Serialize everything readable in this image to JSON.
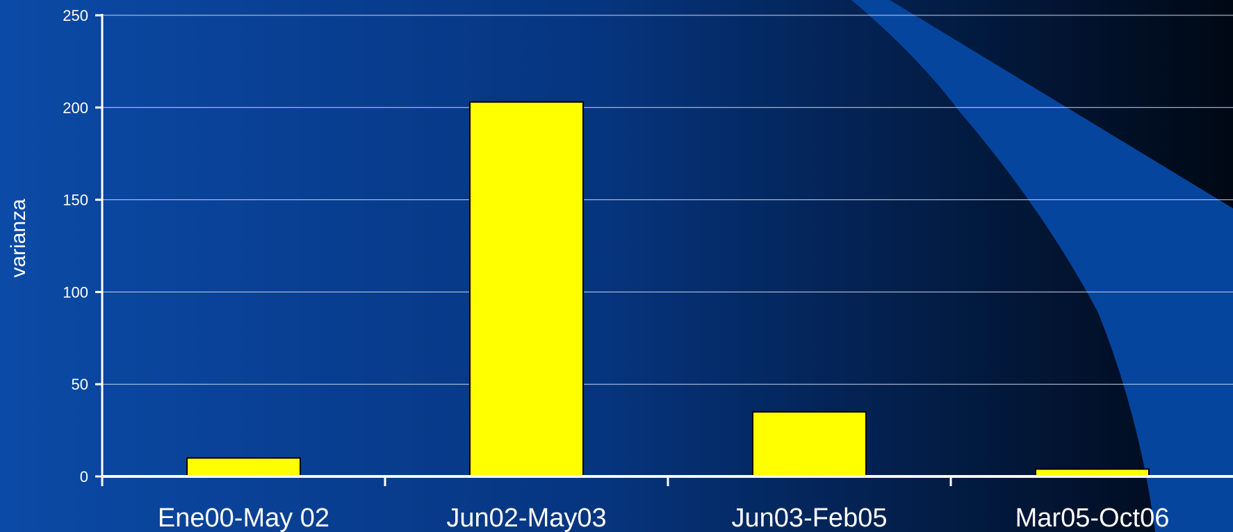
{
  "chart_data": {
    "type": "bar",
    "title": "",
    "xlabel": "",
    "ylabel": "varianza",
    "categories": [
      "Ene00-May 02",
      "Jun02-May03",
      "Jun03-Feb05",
      "Mar05-Oct06"
    ],
    "values": [
      10,
      203,
      35,
      4
    ],
    "ylim": [
      0,
      250
    ],
    "yticks": [
      "0",
      "50",
      "100",
      "150",
      "200",
      "250"
    ],
    "grid": true,
    "legend": "none",
    "colors": {
      "bar_fill": "#ffff00",
      "bar_stroke": "#000000",
      "axis": "#ffffff",
      "gridline": "#c8d6ee",
      "text": "#ffffff",
      "background_left": "#0b4aa6",
      "background_right": "#000814"
    }
  }
}
